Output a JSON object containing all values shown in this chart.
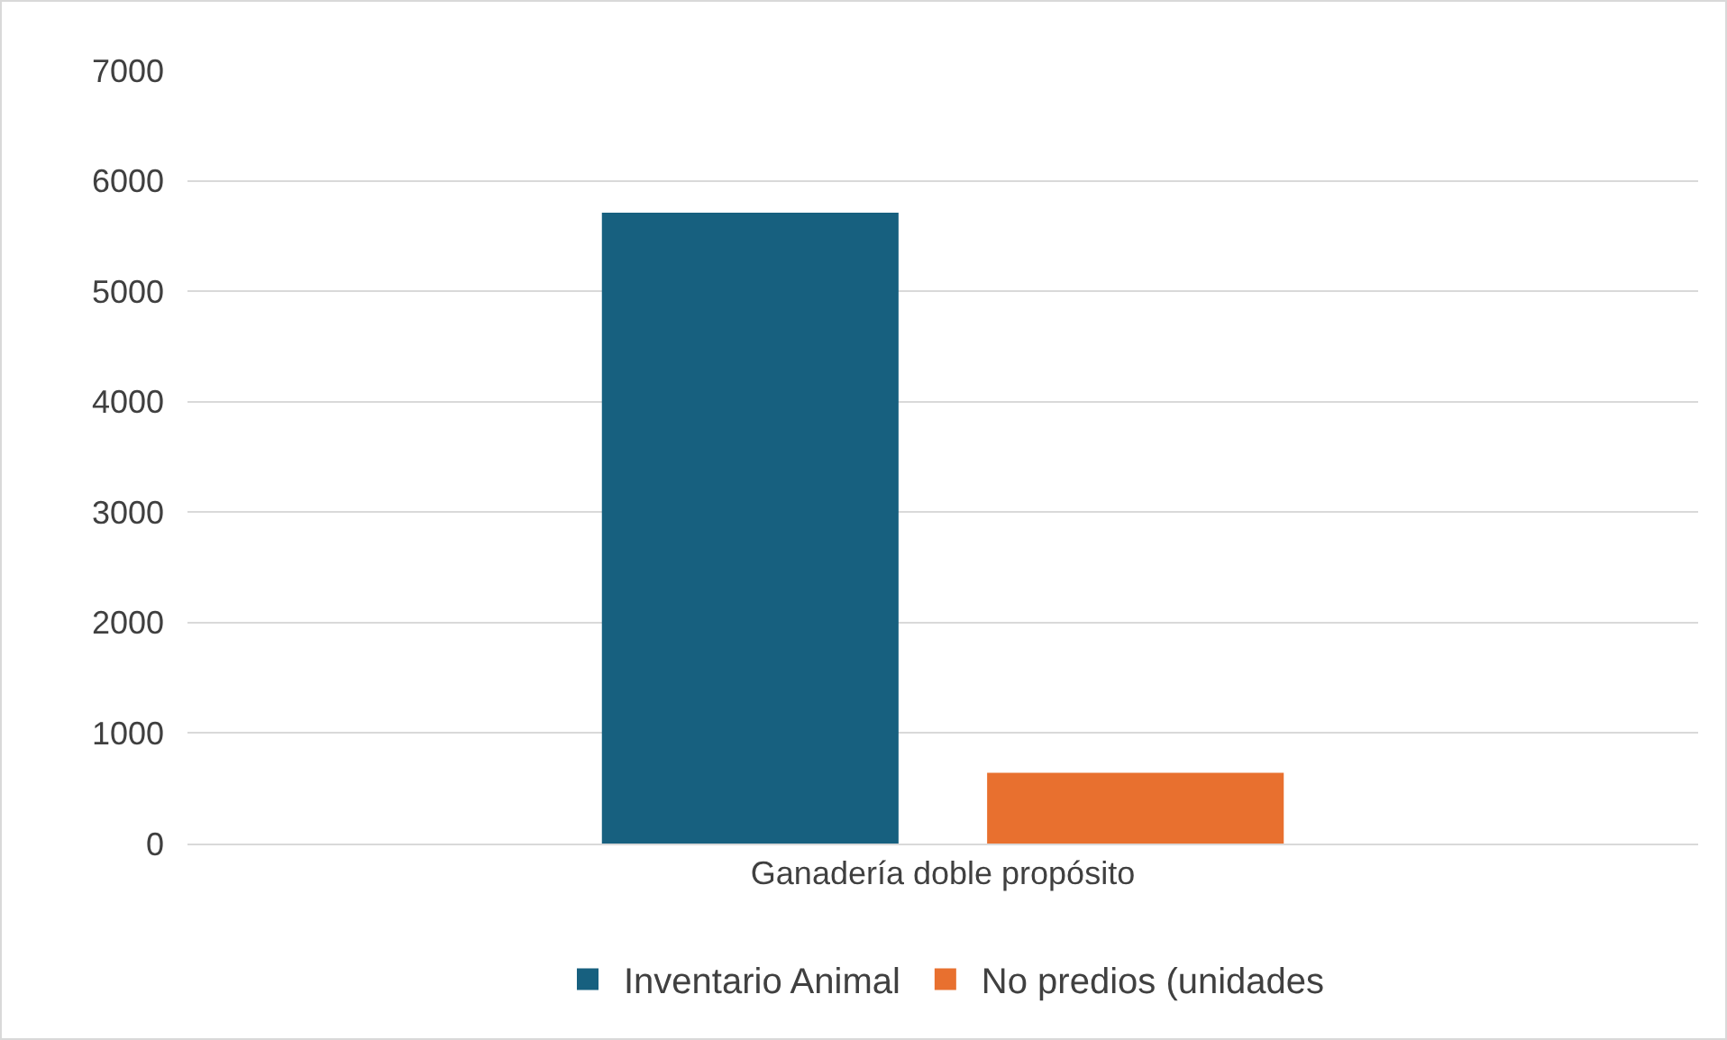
{
  "chart_data": {
    "type": "bar",
    "categories": [
      "Ganadería doble propósito"
    ],
    "series": [
      {
        "name": "Inventario Animal",
        "color": "#17607f",
        "values": [
          5710
        ]
      },
      {
        "name": "No predios (unidades",
        "color": "#e8702f",
        "values": [
          640
        ]
      }
    ],
    "ylim": [
      0,
      7000
    ],
    "yticks": [
      0,
      1000,
      2000,
      3000,
      4000,
      5000,
      6000,
      7000
    ],
    "grid": "y",
    "legend": "bottom"
  }
}
